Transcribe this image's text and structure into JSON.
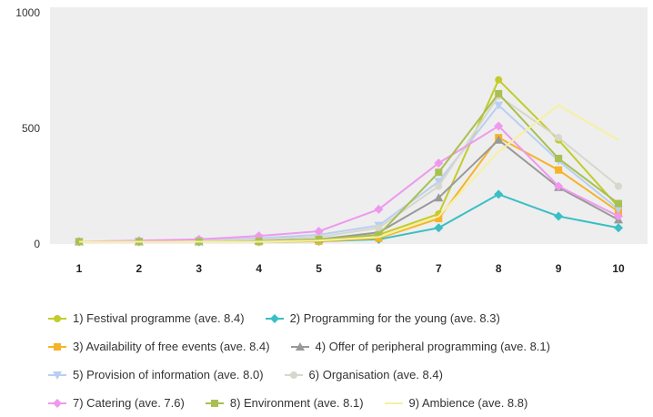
{
  "chart_data": {
    "type": "line",
    "x": [
      "1",
      "2",
      "3",
      "4",
      "5",
      "6",
      "7",
      "8",
      "9",
      "10"
    ],
    "ylim": [
      0,
      1000
    ],
    "yticks": [
      "0",
      "500",
      "1000"
    ],
    "grid": false,
    "legend_position": "bottom",
    "series": [
      {
        "name": "1) Festival programme (ave. 8.4)",
        "color": "#c2cc2a",
        "marker": "circle",
        "values": [
          10,
          10,
          10,
          12,
          15,
          40,
          130,
          710,
          450,
          160
        ]
      },
      {
        "name": "2) Programming for the young (ave. 8.3)",
        "color": "#39bfc4",
        "marker": "diamond",
        "values": [
          10,
          10,
          10,
          10,
          12,
          20,
          70,
          215,
          120,
          70
        ]
      },
      {
        "name": "3) Availability of free events (ave. 8.4)",
        "color": "#f6b327",
        "marker": "square",
        "values": [
          10,
          10,
          10,
          10,
          12,
          25,
          110,
          460,
          320,
          140
        ]
      },
      {
        "name": "4) Offer of peripheral programming (ave. 8.1)",
        "color": "#999999",
        "marker": "triangle",
        "values": [
          10,
          10,
          10,
          15,
          20,
          50,
          200,
          450,
          245,
          105
        ]
      },
      {
        "name": "5) Provision of information (ave. 8.0)",
        "color": "#b9cff2",
        "marker": "triangle-down",
        "values": [
          10,
          12,
          15,
          25,
          40,
          80,
          270,
          600,
          360,
          150
        ]
      },
      {
        "name": "6) Organisation (ave. 8.4)",
        "color": "#d7d7cc",
        "marker": "circle",
        "values": [
          10,
          12,
          15,
          20,
          30,
          70,
          250,
          640,
          460,
          250
        ]
      },
      {
        "name": "7) Catering (ave. 7.6)",
        "color": "#ee99ee",
        "marker": "diamond",
        "values": [
          10,
          15,
          20,
          35,
          55,
          150,
          350,
          510,
          250,
          120
        ]
      },
      {
        "name": "8) Environment (ave. 8.1)",
        "color": "#a8c050",
        "marker": "square",
        "values": [
          10,
          10,
          10,
          12,
          20,
          40,
          310,
          650,
          370,
          175
        ]
      },
      {
        "name": "9) Ambience (ave. 8.8)",
        "color": "#f7f0a0",
        "marker": "none",
        "values": [
          10,
          10,
          10,
          10,
          15,
          30,
          120,
          400,
          600,
          450
        ]
      }
    ]
  }
}
